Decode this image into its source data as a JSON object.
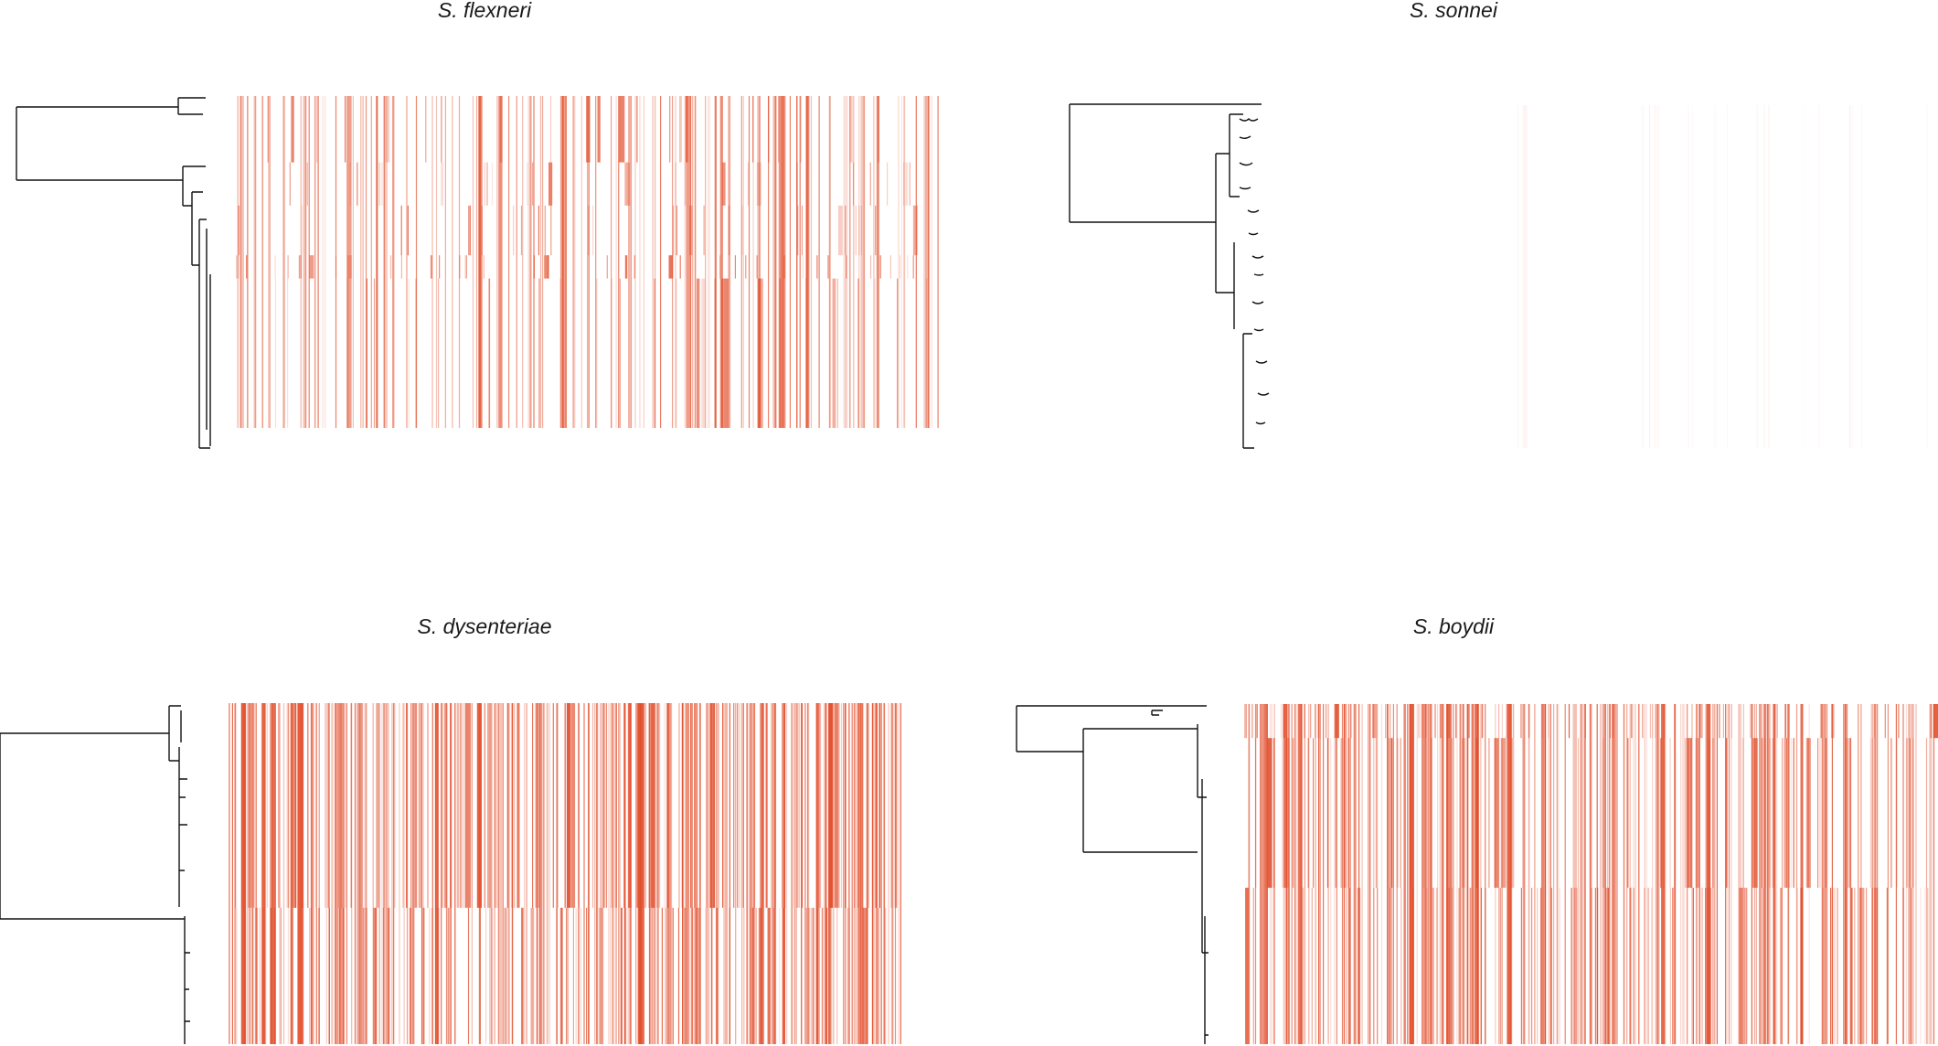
{
  "figure": {
    "panels": [
      {
        "id": "flexneri",
        "title": "S. flexneri",
        "heat_color": "#e2502e",
        "density": 0.9,
        "bands": [
          0.0,
          0.2,
          0.33,
          0.48,
          0.55,
          1.0
        ]
      },
      {
        "id": "sonnei",
        "title": "S. sonnei",
        "heat_color": "#e2502e",
        "density": 0.08,
        "bands": [
          0.0,
          1.0
        ]
      },
      {
        "id": "dysenteriae",
        "title": "S. dysenteriae",
        "heat_color": "#e2502e",
        "density": 1.6,
        "bands": [
          0.0,
          0.6,
          1.0
        ]
      },
      {
        "id": "boydii",
        "title": "S. boydii",
        "heat_color": "#e2502e",
        "density": 1.5,
        "bands": [
          0.0,
          0.1,
          0.54,
          1.0
        ]
      }
    ]
  }
}
